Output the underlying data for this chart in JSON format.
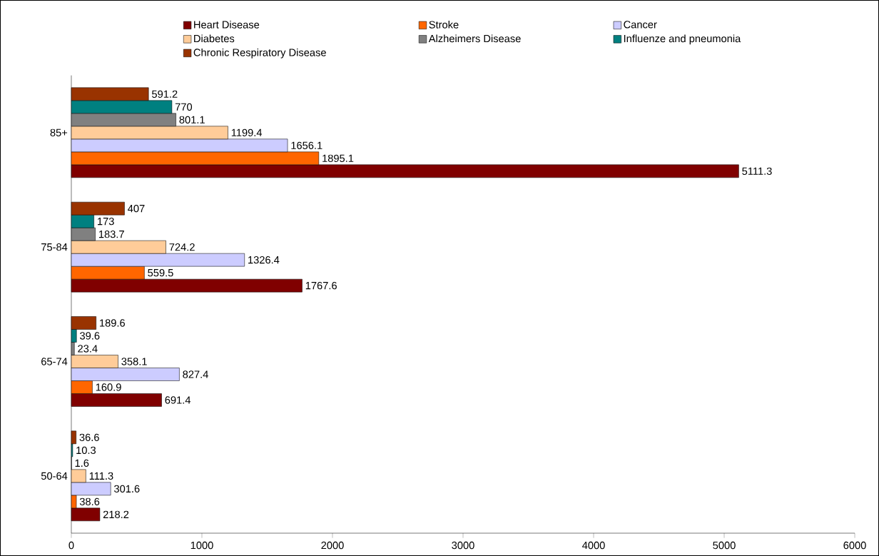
{
  "chart_data": {
    "type": "bar",
    "orientation": "horizontal",
    "categories": [
      "85+",
      "75-84",
      "65-74",
      "50-64"
    ],
    "series": [
      {
        "name": "Heart Disease",
        "color": "#800000",
        "values": [
          5111.3,
          1767.6,
          691.4,
          218.2
        ],
        "value_labels": [
          "5111.3",
          "1767.6",
          "691.4",
          "218.2"
        ]
      },
      {
        "name": "Stroke",
        "color": "#ff6600",
        "values": [
          1895.1,
          559.5,
          160.9,
          38.6
        ],
        "value_labels": [
          "1895.1",
          "559.5",
          "160.9",
          "38.6"
        ]
      },
      {
        "name": "Cancer",
        "color": "#ccccff",
        "values": [
          1656.1,
          1326.4,
          827.4,
          301.6
        ],
        "value_labels": [
          "1656.1",
          "1326.4",
          "827.4",
          "301.6"
        ]
      },
      {
        "name": "Diabetes",
        "color": "#ffcc99",
        "values": [
          1199.4,
          724.2,
          358.1,
          111.3
        ],
        "value_labels": [
          "1199.4",
          "724.2",
          "358.1",
          "111.3"
        ]
      },
      {
        "name": "Alzheimers Disease",
        "color": "#808080",
        "values": [
          801.1,
          183.7,
          23.4,
          1.6
        ],
        "value_labels": [
          "801.1",
          "183.7",
          "23.4",
          "1.6"
        ]
      },
      {
        "name": "Influenze and pneumonia",
        "color": "#008080",
        "values": [
          770,
          173,
          39.6,
          10.3
        ],
        "value_labels": [
          "770",
          "173",
          "39.6",
          "10.3"
        ]
      },
      {
        "name": "Chronic Respiratory Disease",
        "color": "#993300",
        "values": [
          591.2,
          407,
          189.6,
          36.6
        ],
        "value_labels": [
          "591.2",
          "407",
          "189.6",
          "36.6"
        ]
      }
    ],
    "xlim": [
      0,
      6000
    ],
    "xticks": [
      0,
      1000,
      2000,
      3000,
      4000,
      5000,
      6000
    ],
    "legend": "top",
    "grid": false
  }
}
